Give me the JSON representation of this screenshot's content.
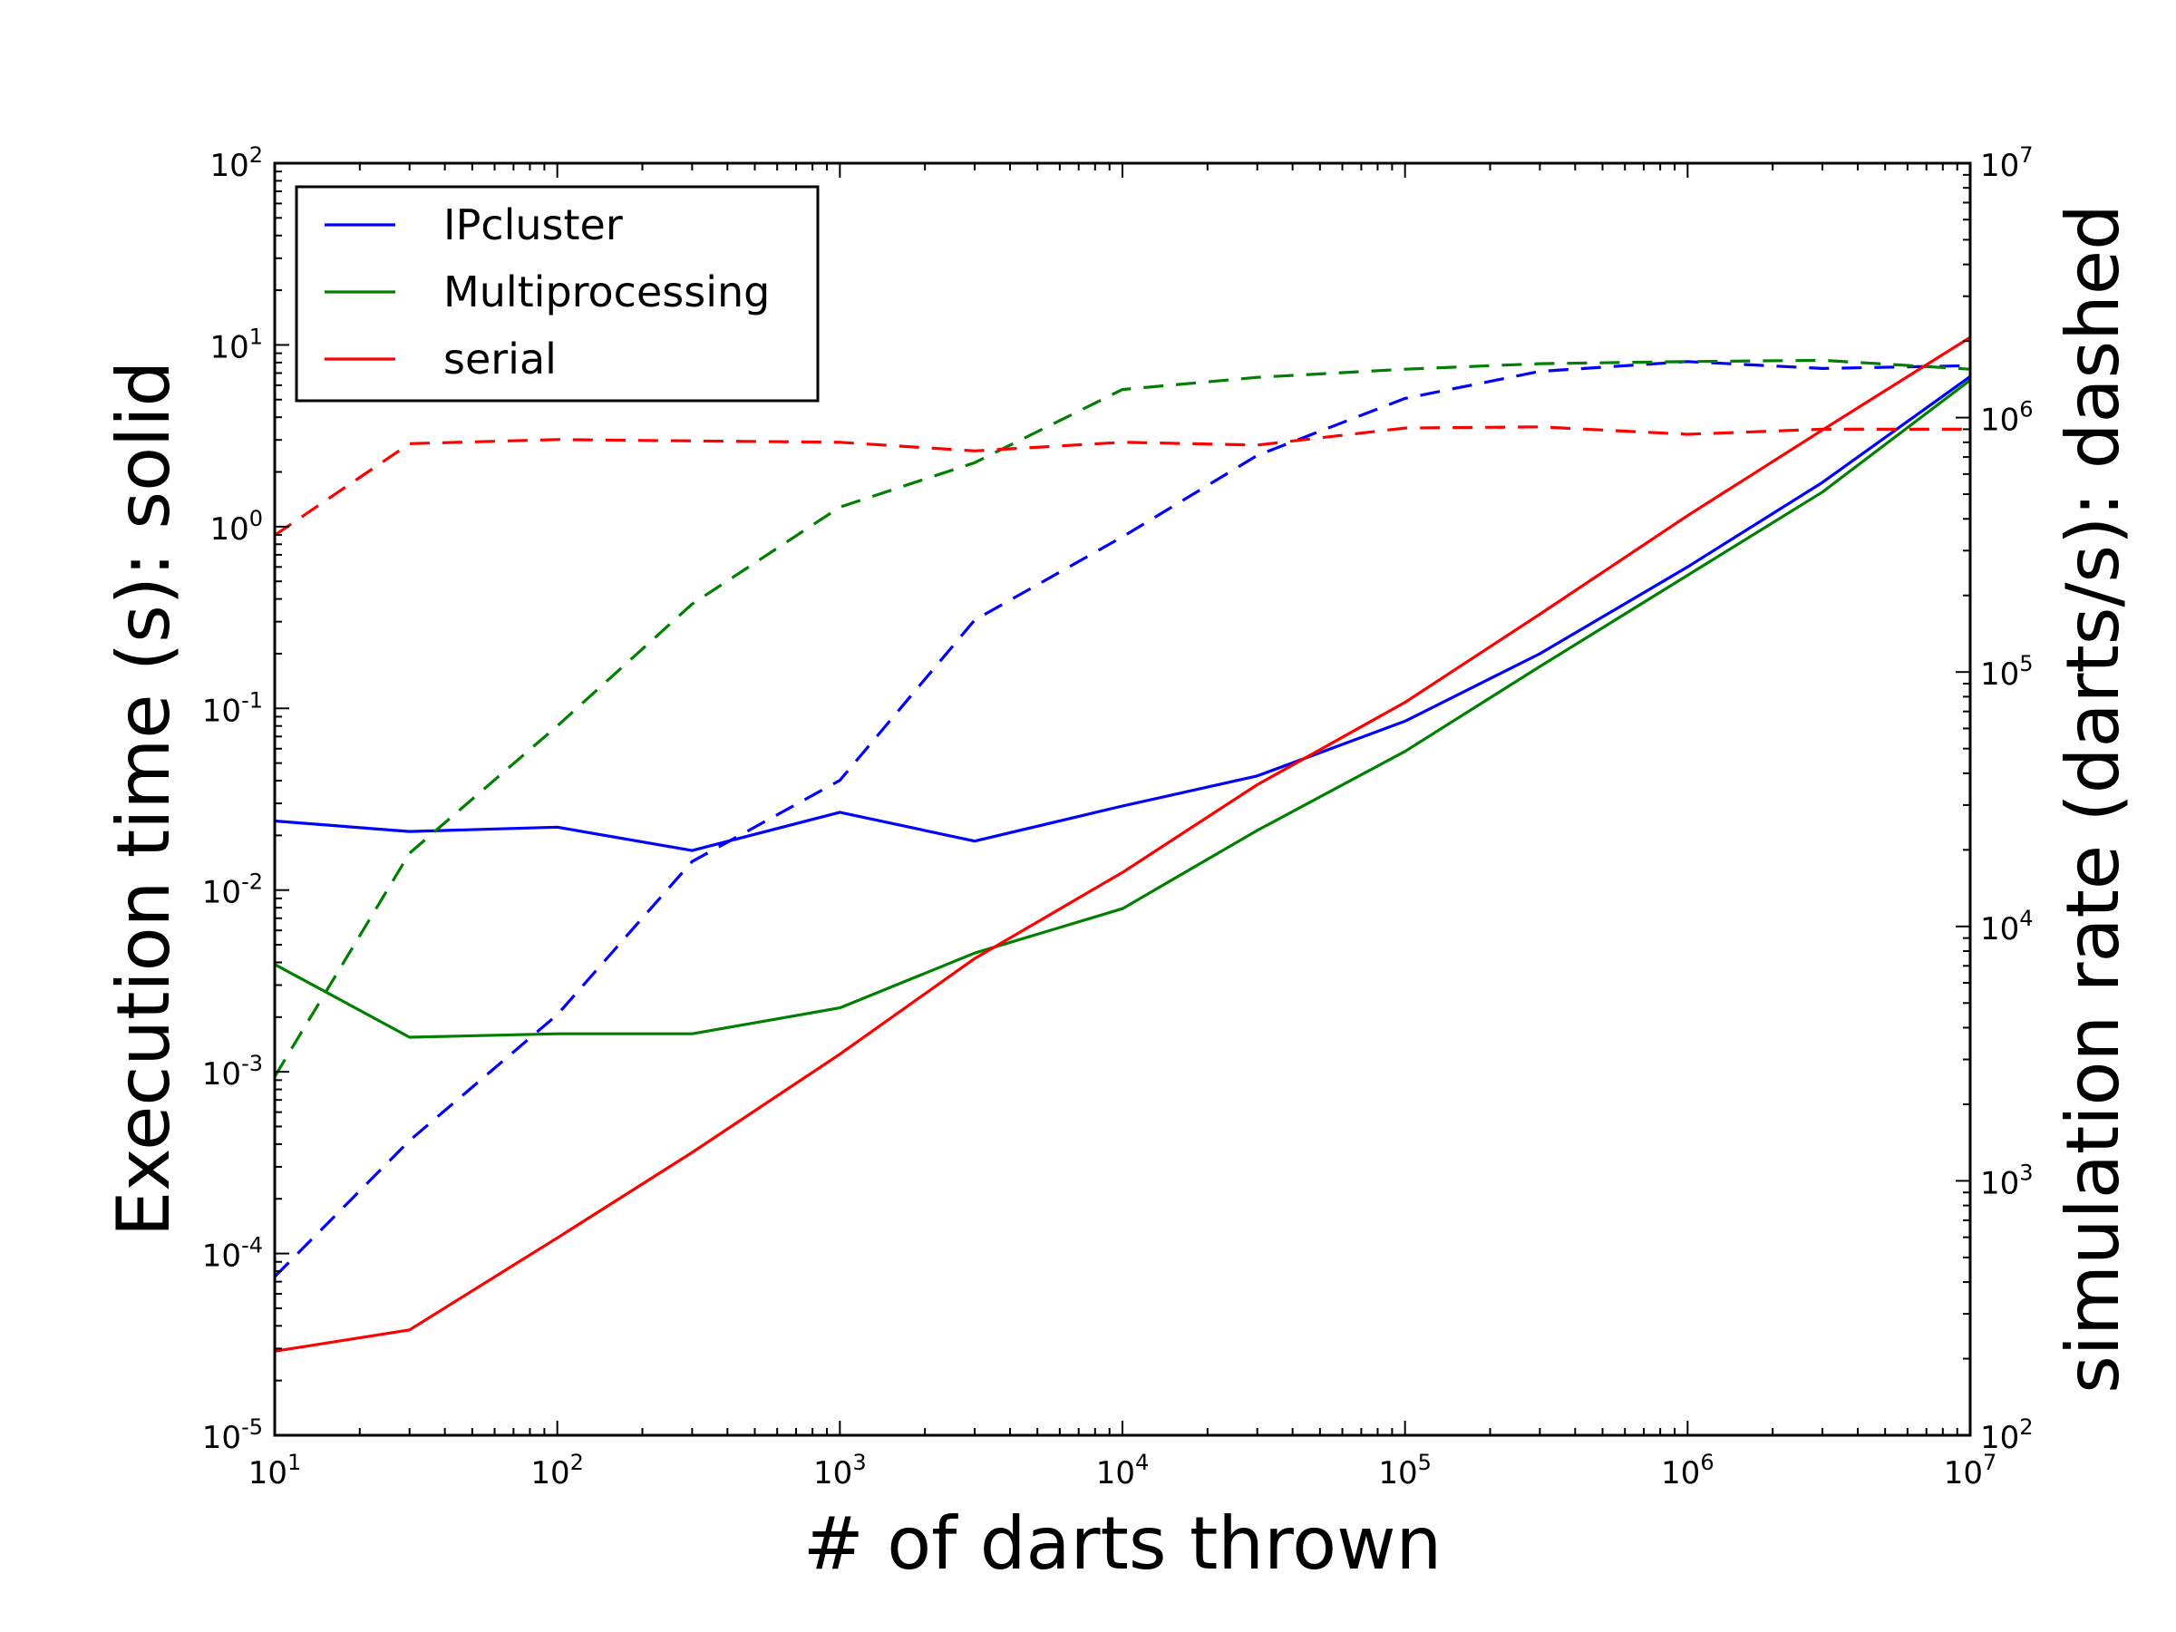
{
  "chart_data": {
    "type": "line",
    "xlabel": "# of darts thrown",
    "ylabel_left": "Execution time (s): solid",
    "ylabel_right": "simulation rate (darts/s): dashed",
    "xscale": "log",
    "yscale_left": "log",
    "yscale_right": "log",
    "xlim": [
      10,
      10000000
    ],
    "ylim_left": [
      1e-05,
      100
    ],
    "ylim_right": [
      100,
      10000000
    ],
    "x_ticks": [
      "10^1",
      "10^2",
      "10^3",
      "10^4",
      "10^5",
      "10^6",
      "10^7"
    ],
    "y_left_ticks": [
      "10^-5",
      "10^-4",
      "10^-3",
      "10^-2",
      "10^-1",
      "10^0",
      "10^1",
      "10^2"
    ],
    "y_right_ticks": [
      "10^2",
      "10^3",
      "10^4",
      "10^5",
      "10^6",
      "10^7"
    ],
    "legend_position": "upper-left",
    "grid": false,
    "x": [
      10,
      30,
      100,
      300,
      1000,
      3000,
      10000,
      30000,
      100000,
      300000,
      1000000,
      3000000,
      10000000
    ],
    "series": [
      {
        "name": "IPcluster",
        "color": "#0000ff",
        "time": [
          0.024,
          0.021,
          0.0222,
          0.0165,
          0.0268,
          0.0186,
          0.029,
          0.0425,
          0.085,
          0.2,
          0.6,
          1.75,
          6.7
        ],
        "rate": [
          420,
          1440,
          4500,
          18000,
          37500,
          160000,
          340000,
          710000,
          1190000,
          1520000,
          1660000,
          1560000,
          1600000
        ]
      },
      {
        "name": "Multiprocessing",
        "color": "#008000",
        "time": [
          0.0039,
          0.00155,
          0.00162,
          0.00162,
          0.00225,
          0.0045,
          0.0079,
          0.0213,
          0.058,
          0.17,
          0.54,
          1.55,
          6.4
        ],
        "rate": [
          2570,
          19400,
          61400,
          185000,
          445000,
          665000,
          1290000,
          1440000,
          1550000,
          1630000,
          1660000,
          1680000,
          1550000
        ]
      },
      {
        "name": "serial",
        "color": "#ff0000",
        "time": [
          2.9e-05,
          3.8e-05,
          0.000122,
          0.00036,
          0.00125,
          0.0042,
          0.0125,
          0.038,
          0.108,
          0.33,
          1.15,
          3.4,
          11.0
        ],
        "rate": [
          345000,
          790000,
          820000,
          810000,
          800000,
          740000,
          800000,
          780000,
          910000,
          920000,
          860000,
          900000,
          900000
        ]
      }
    ]
  }
}
